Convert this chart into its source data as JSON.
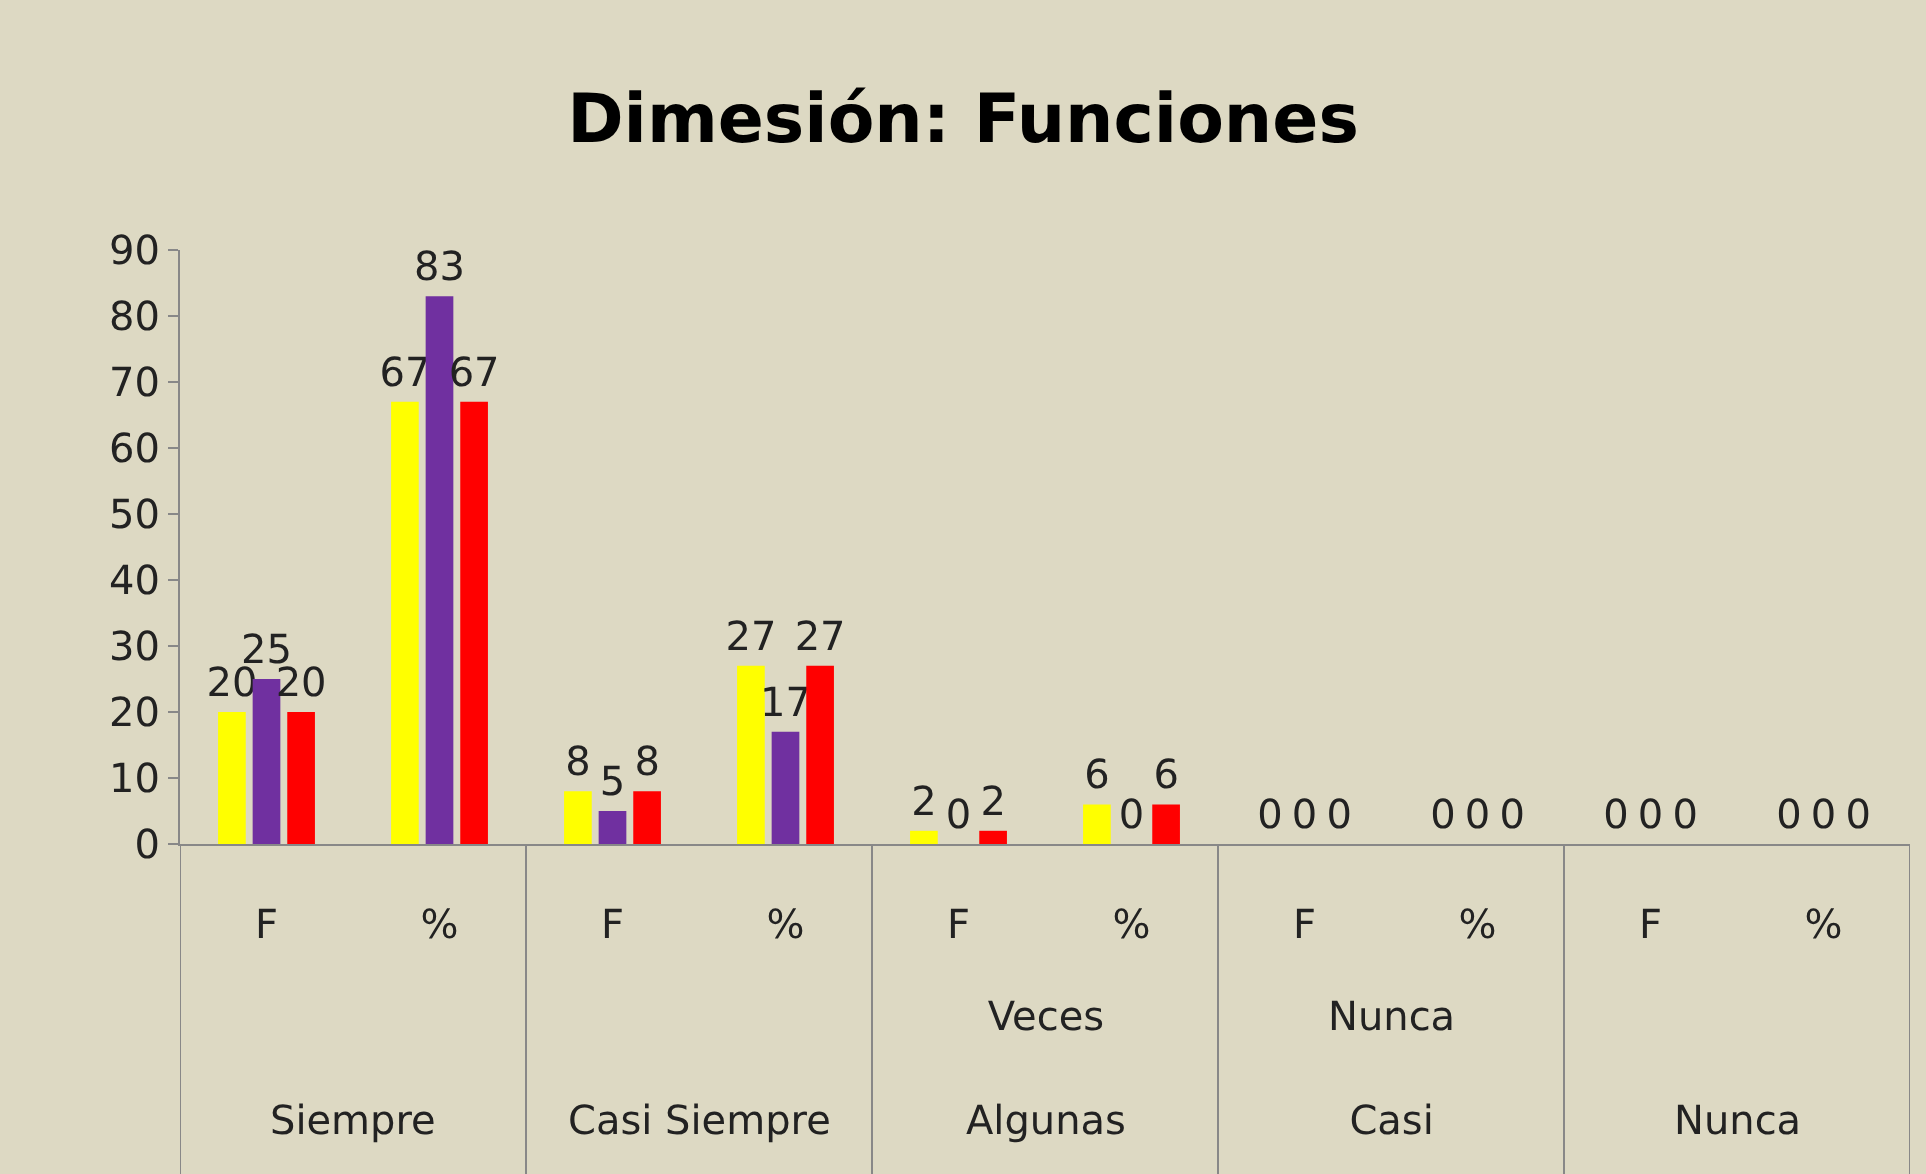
{
  "chart_data": {
    "type": "bar",
    "title": "Dimesión: Funciones",
    "categories": [
      "F",
      "%",
      "F",
      "%",
      "F",
      "%",
      "F",
      "%",
      "F",
      "%"
    ],
    "series": [
      {
        "color": "#ffff00",
        "values": [
          20,
          67,
          8,
          27,
          2,
          6,
          0,
          0,
          0,
          0
        ]
      },
      {
        "color": "#7030a0",
        "values": [
          25,
          83,
          5,
          17,
          0,
          0,
          0,
          0,
          0,
          0
        ]
      },
      {
        "color": "#ff0000",
        "values": [
          20,
          67,
          8,
          27,
          2,
          6,
          0,
          0,
          0,
          0
        ]
      }
    ],
    "annotations": [
      "Siempre",
      "Casi Siempre",
      "Veces\nAlgunas",
      "Nunca\nCasi",
      "Nunca"
    ],
    "ylim": [
      0,
      90
    ],
    "yticks": [
      0,
      10,
      20,
      30,
      40,
      50,
      60,
      70,
      80,
      90
    ],
    "data_labels": true
  }
}
